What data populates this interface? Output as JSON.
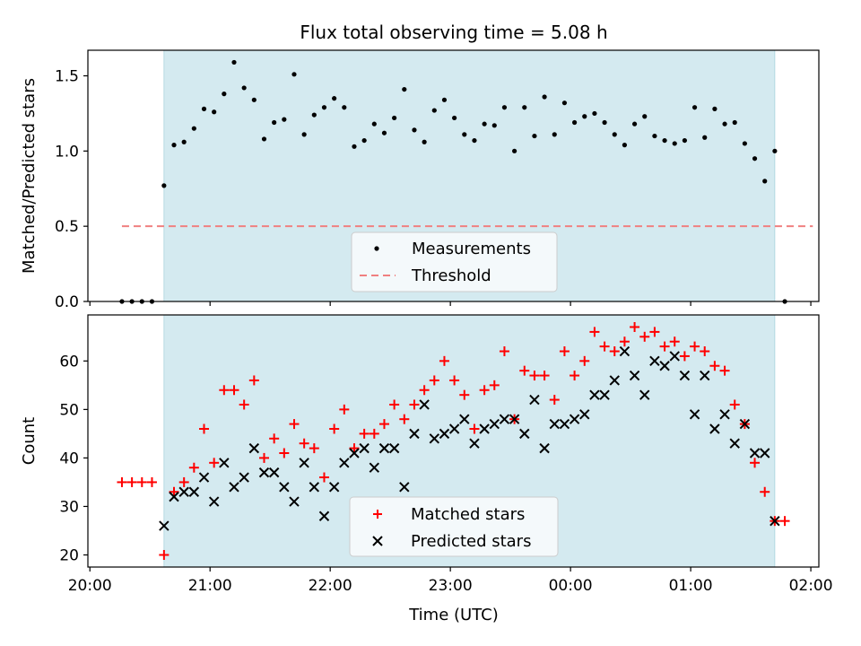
{
  "figure": {
    "title": "Flux total observing time = 5.08 h",
    "xlabel": "Time (UTC)",
    "x_ticks": [
      {
        "t": 0,
        "label": "20:00"
      },
      {
        "t": 60,
        "label": "21:00"
      },
      {
        "t": 120,
        "label": "22:00"
      },
      {
        "t": 180,
        "label": "23:00"
      },
      {
        "t": 240,
        "label": "00:00"
      },
      {
        "t": 300,
        "label": "01:00"
      },
      {
        "t": 360,
        "label": "02:00"
      }
    ]
  },
  "colors": {
    "observing_span": "#d4eaf0",
    "measurements": "#000000",
    "threshold": "#f08080",
    "matched": "#ff0000",
    "predicted": "#000000",
    "legend_bg": "#f4f9fb"
  },
  "chart_data": [
    {
      "type": "scatter",
      "ylabel": "Matched/Predicted stars",
      "xlim": [
        "19:59",
        "02:04"
      ],
      "ylim": [
        0,
        1.67
      ],
      "y_ticks": [
        {
          "v": 0.0,
          "label": "0.0"
        },
        {
          "v": 0.5,
          "label": "0.5"
        },
        {
          "v": 1.0,
          "label": "1.0"
        },
        {
          "v": 1.5,
          "label": "1.5"
        }
      ],
      "observing_span": [
        "20:37",
        "01:42"
      ],
      "legend": {
        "placement": "bottom-center",
        "entries": [
          "Measurements",
          "Threshold"
        ]
      },
      "series": [
        {
          "name": "Measurements",
          "marker": "dot",
          "x": [
            "20:16",
            "20:21",
            "20:26",
            "20:31",
            "20:37",
            "20:42",
            "20:47",
            "20:52",
            "20:57",
            "21:02",
            "21:07",
            "21:12",
            "21:17",
            "21:22",
            "21:27",
            "21:32",
            "21:37",
            "21:42",
            "21:47",
            "21:52",
            "21:57",
            "22:02",
            "22:07",
            "22:12",
            "22:17",
            "22:22",
            "22:27",
            "22:32",
            "22:37",
            "22:42",
            "22:47",
            "22:52",
            "22:57",
            "23:02",
            "23:07",
            "23:12",
            "23:17",
            "23:22",
            "23:27",
            "23:32",
            "23:37",
            "23:42",
            "23:47",
            "23:52",
            "23:57",
            "00:02",
            "00:07",
            "00:12",
            "00:17",
            "00:22",
            "00:27",
            "00:32",
            "00:37",
            "00:42",
            "00:47",
            "00:52",
            "00:57",
            "01:02",
            "01:07",
            "01:12",
            "01:17",
            "01:22",
            "01:27",
            "01:32",
            "01:37",
            "01:42",
            "01:47"
          ],
          "y": [
            0,
            0,
            0,
            0,
            0.77,
            1.04,
            1.06,
            1.15,
            1.28,
            1.26,
            1.38,
            1.59,
            1.42,
            1.34,
            1.08,
            1.19,
            1.21,
            1.51,
            1.11,
            1.24,
            1.29,
            1.35,
            1.29,
            1.03,
            1.07,
            1.18,
            1.12,
            1.22,
            1.41,
            1.14,
            1.06,
            1.27,
            1.34,
            1.22,
            1.11,
            1.07,
            1.18,
            1.17,
            1.29,
            1.0,
            1.29,
            1.1,
            1.36,
            1.11,
            1.32,
            1.19,
            1.23,
            1.25,
            1.19,
            1.11,
            1.04,
            1.18,
            1.23,
            1.1,
            1.07,
            1.05,
            1.07,
            1.29,
            1.09,
            1.28,
            1.18,
            1.19,
            1.05,
            0.95,
            0.8,
            1.0,
            0
          ]
        },
        {
          "name": "Threshold",
          "style": "dashed",
          "x": [
            "20:16",
            "02:01"
          ],
          "y": [
            0.5,
            0.5
          ]
        }
      ]
    },
    {
      "type": "scatter",
      "ylabel": "Count",
      "xlim": [
        "19:59",
        "02:04"
      ],
      "ylim": [
        17.5,
        69.5
      ],
      "y_ticks": [
        {
          "v": 20,
          "label": "20"
        },
        {
          "v": 30,
          "label": "30"
        },
        {
          "v": 40,
          "label": "40"
        },
        {
          "v": 50,
          "label": "50"
        },
        {
          "v": 60,
          "label": "60"
        }
      ],
      "observing_span": [
        "20:37",
        "01:42"
      ],
      "legend": {
        "placement": "bottom-center",
        "entries": [
          "Matched stars",
          "Predicted stars"
        ]
      },
      "series": [
        {
          "name": "Matched stars",
          "marker": "plus",
          "x": [
            "20:16",
            "20:21",
            "20:26",
            "20:31",
            "20:37",
            "20:42",
            "20:47",
            "20:52",
            "20:57",
            "21:02",
            "21:07",
            "21:12",
            "21:17",
            "21:22",
            "21:27",
            "21:32",
            "21:37",
            "21:42",
            "21:47",
            "21:52",
            "21:57",
            "22:02",
            "22:07",
            "22:12",
            "22:17",
            "22:22",
            "22:27",
            "22:32",
            "22:37",
            "22:42",
            "22:47",
            "22:52",
            "22:57",
            "23:02",
            "23:07",
            "23:12",
            "23:17",
            "23:22",
            "23:27",
            "23:32",
            "23:37",
            "23:42",
            "23:47",
            "23:52",
            "23:57",
            "00:02",
            "00:07",
            "00:12",
            "00:17",
            "00:22",
            "00:27",
            "00:32",
            "00:37",
            "00:42",
            "00:47",
            "00:52",
            "00:57",
            "01:02",
            "01:07",
            "01:12",
            "01:17",
            "01:22",
            "01:27",
            "01:32",
            "01:37",
            "01:42",
            "01:47"
          ],
          "y": [
            35,
            35,
            35,
            35,
            20,
            33,
            35,
            38,
            46,
            39,
            54,
            54,
            51,
            56,
            40,
            44,
            41,
            47,
            43,
            42,
            36,
            46,
            50,
            42,
            45,
            45,
            47,
            51,
            48,
            51,
            54,
            56,
            60,
            56,
            53,
            46,
            54,
            55,
            62,
            48,
            58,
            57,
            57,
            52,
            62,
            57,
            60,
            66,
            63,
            62,
            64,
            67,
            65,
            66,
            63,
            64,
            61,
            63,
            62,
            59,
            58,
            51,
            47,
            39,
            33,
            27,
            27
          ]
        },
        {
          "name": "Predicted stars",
          "marker": "x",
          "x": [
            "20:37",
            "20:42",
            "20:47",
            "20:52",
            "20:57",
            "21:02",
            "21:07",
            "21:12",
            "21:17",
            "21:22",
            "21:27",
            "21:32",
            "21:37",
            "21:42",
            "21:47",
            "21:52",
            "21:57",
            "22:02",
            "22:07",
            "22:12",
            "22:17",
            "22:22",
            "22:27",
            "22:32",
            "22:37",
            "22:42",
            "22:47",
            "22:52",
            "22:57",
            "23:02",
            "23:07",
            "23:12",
            "23:17",
            "23:22",
            "23:27",
            "23:32",
            "23:37",
            "23:42",
            "23:47",
            "23:52",
            "23:57",
            "00:02",
            "00:07",
            "00:12",
            "00:17",
            "00:22",
            "00:27",
            "00:32",
            "00:37",
            "00:42",
            "00:47",
            "00:52",
            "00:57",
            "01:02",
            "01:07",
            "01:12",
            "01:17",
            "01:22",
            "01:27",
            "01:32",
            "01:37",
            "01:42"
          ],
          "y": [
            26,
            32,
            33,
            33,
            36,
            31,
            39,
            34,
            36,
            42,
            37,
            37,
            34,
            31,
            39,
            34,
            28,
            34,
            39,
            41,
            42,
            38,
            42,
            42,
            34,
            45,
            51,
            44,
            45,
            46,
            48,
            43,
            46,
            47,
            48,
            48,
            45,
            52,
            42,
            47,
            47,
            48,
            49,
            53,
            53,
            56,
            62,
            57,
            53,
            60,
            59,
            61,
            57,
            49,
            57,
            46,
            49,
            43,
            47,
            41,
            41,
            27
          ]
        }
      ]
    }
  ]
}
